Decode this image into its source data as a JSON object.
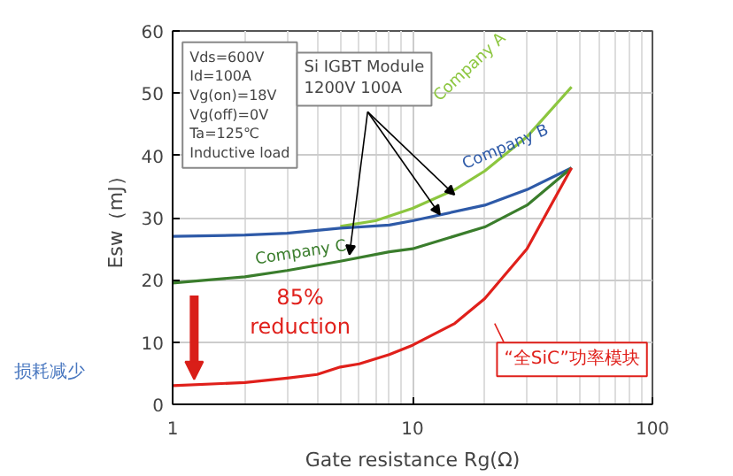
{
  "chart_data": {
    "type": "line",
    "xlabel": "Gate resistance Rg(Ω)",
    "ylabel": "Esw（mJ）",
    "log": "x",
    "xlim": [
      1,
      100
    ],
    "xticks": [
      1,
      10,
      100
    ],
    "ylim": [
      0,
      60
    ],
    "yticks": [
      0,
      10,
      20,
      30,
      40,
      50,
      60
    ],
    "grid": true,
    "legend": false,
    "line_style": "solid",
    "marker": "none",
    "series": [
      {
        "name": "Company A",
        "color": "#8cc63f",
        "x": [
          5,
          7,
          10,
          15,
          20,
          30,
          46
        ],
        "values": [
          28.6,
          29.5,
          31.5,
          34.5,
          37.5,
          43,
          51
        ]
      },
      {
        "name": "Company B",
        "color": "#2e5aa8",
        "x": [
          1,
          2,
          3,
          5,
          8,
          10,
          20,
          30,
          46
        ],
        "values": [
          27,
          27.2,
          27.5,
          28.3,
          28.8,
          29.5,
          32,
          34.5,
          38
        ]
      },
      {
        "name": "Company C",
        "color": "#3a7d2c",
        "x": [
          1,
          2,
          3,
          5,
          8,
          10,
          20,
          30,
          46
        ],
        "values": [
          19.5,
          20.5,
          21.5,
          23,
          24.5,
          25,
          28.5,
          32,
          38
        ]
      },
      {
        "name": "“全SiC”功率模块",
        "color": "#e0201b",
        "x": [
          1,
          2,
          3,
          4,
          5,
          6,
          8,
          10,
          15,
          20,
          30,
          46
        ],
        "values": [
          3,
          3.5,
          4.2,
          4.8,
          6,
          6.5,
          8,
          9.5,
          13,
          17,
          25,
          38
        ]
      }
    ],
    "annotations": [
      "Vds=600V\nId=100A\nVg(on)=18V\nVg(off)=0V\nTa=125℃\nInductive load",
      {
        "text": "Si IGBT Module\n1200V 100A",
        "x": 13,
        "y": 30.5
      },
      "85%\nreduction",
      "损耗减少"
    ]
  }
}
